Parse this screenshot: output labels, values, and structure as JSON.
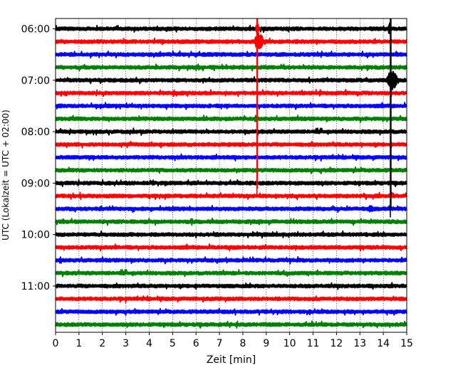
{
  "chart_data": {
    "type": "line",
    "title": "",
    "xlabel": "Zeit  [min]",
    "ylabel": "UTC (Lokalzeit = UTC + 02:00)",
    "xlim": [
      0,
      15
    ],
    "xticks": [
      0,
      1,
      2,
      3,
      4,
      5,
      6,
      7,
      8,
      9,
      10,
      11,
      12,
      13,
      14,
      15
    ],
    "xtick_labels": [
      "0",
      "1",
      "2",
      "3",
      "4",
      "5",
      "6",
      "7",
      "8",
      "9",
      "10",
      "11",
      "12",
      "13",
      "14",
      "15"
    ],
    "ylim_utc": [
      "05:48",
      "11:54"
    ],
    "y_tick_labels": [
      "06:00",
      "07:00",
      "08:00",
      "09:00",
      "10:00",
      "11:00"
    ],
    "row_interval_min": 15,
    "rows": [
      "06:00",
      "06:15",
      "06:30",
      "06:45",
      "07:00",
      "07:15",
      "07:30",
      "07:45",
      "08:00",
      "08:15",
      "08:30",
      "08:45",
      "09:00",
      "09:15",
      "09:30",
      "09:45",
      "10:00",
      "10:15",
      "10:30",
      "10:45",
      "11:00",
      "11:15",
      "11:30",
      "11:45"
    ],
    "color_cycle": [
      "#000000",
      "#ff0000",
      "#0000ff",
      "#008000"
    ],
    "grid": {
      "x": true,
      "y": false
    },
    "events": [
      {
        "row": "06:15",
        "start_min": 8.5,
        "end_min": 9.2,
        "amplitude": "large",
        "color": "#ff0000"
      },
      {
        "row": "06:00",
        "start_min": 8.55,
        "end_min": 8.8,
        "amplitude": "spike",
        "color": "#ff0000"
      },
      {
        "row": "06:00",
        "start_min": 14.2,
        "end_min": 14.4,
        "amplitude": "spike",
        "color": "#000000"
      },
      {
        "row": "07:00",
        "start_min": 14.15,
        "end_min": 15.0,
        "amplitude": "large",
        "color": "#000000"
      },
      {
        "row": "09:30",
        "start_min": 13.3,
        "end_min": 13.9,
        "amplitude": "medium",
        "color": "#0000ff"
      }
    ],
    "vertical_traces": [
      {
        "x_min": 8.6,
        "from": "05:48",
        "to": "09:15",
        "color": "#ff0000"
      },
      {
        "x_min": 14.3,
        "from": "05:48",
        "to": "09:40",
        "color": "#000000"
      }
    ]
  }
}
